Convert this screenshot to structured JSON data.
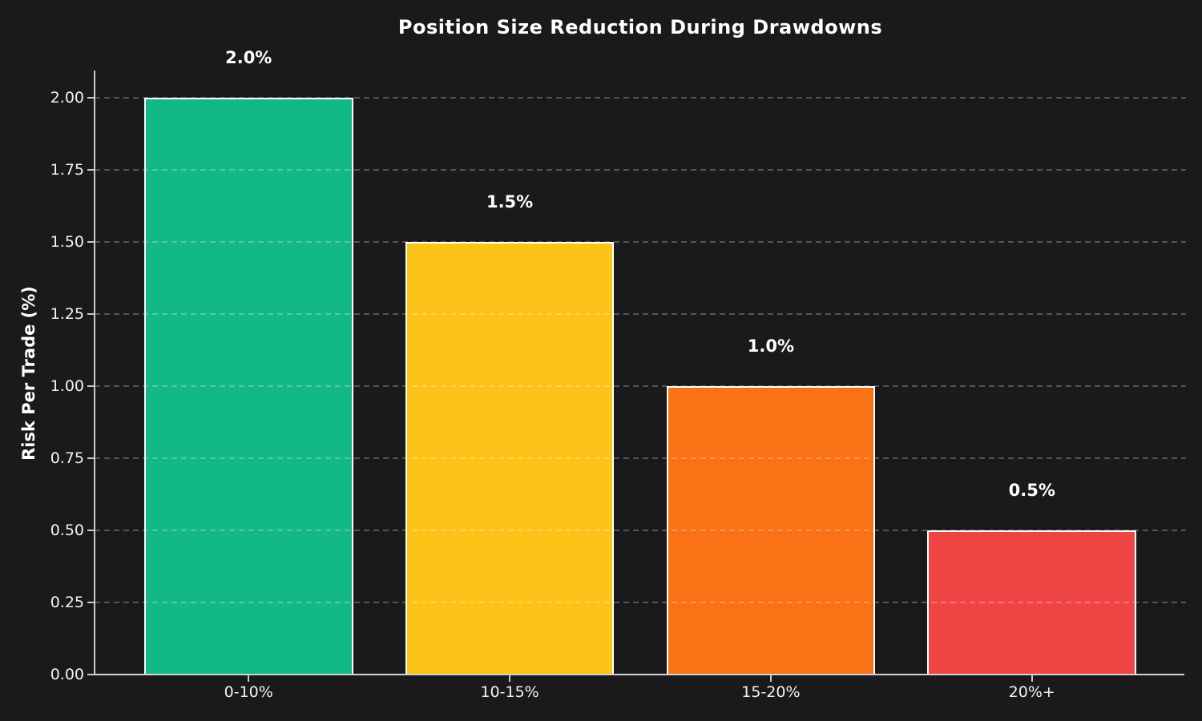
{
  "chart_data": {
    "type": "bar",
    "title": "Position Size Reduction During Drawdowns",
    "xlabel": "",
    "ylabel": "Risk Per Trade (%)",
    "categories": [
      "0-10%",
      "10-15%",
      "15-20%",
      "20%+"
    ],
    "values": [
      2.0,
      1.5,
      1.0,
      0.5
    ],
    "bar_labels": [
      "2.0%",
      "1.5%",
      "1.0%",
      "0.5%"
    ],
    "bar_colors": [
      "#12b886",
      "#fcc419",
      "#f97316",
      "#ef4444"
    ],
    "bar_edge_color": "#ffffff",
    "bar_width_units": 0.8,
    "xlim": [
      -0.59,
      3.59
    ],
    "ylim": [
      0,
      2.094
    ],
    "yticks": [
      0.0,
      0.25,
      0.5,
      0.75,
      1.0,
      1.25,
      1.5,
      1.75,
      2.0
    ],
    "ytick_labels": [
      "0.00",
      "0.25",
      "0.50",
      "0.75",
      "1.00",
      "1.25",
      "1.50",
      "1.75",
      "2.00"
    ],
    "grid": "horizontal-dashed",
    "legend": "none",
    "colors": {
      "background": "#1a1a1c",
      "text": "#ffffff",
      "tick_text": "#f2f2f2",
      "spine": "#c9c9c9",
      "gridline": "rgba(255,255,255,0.26)"
    }
  }
}
